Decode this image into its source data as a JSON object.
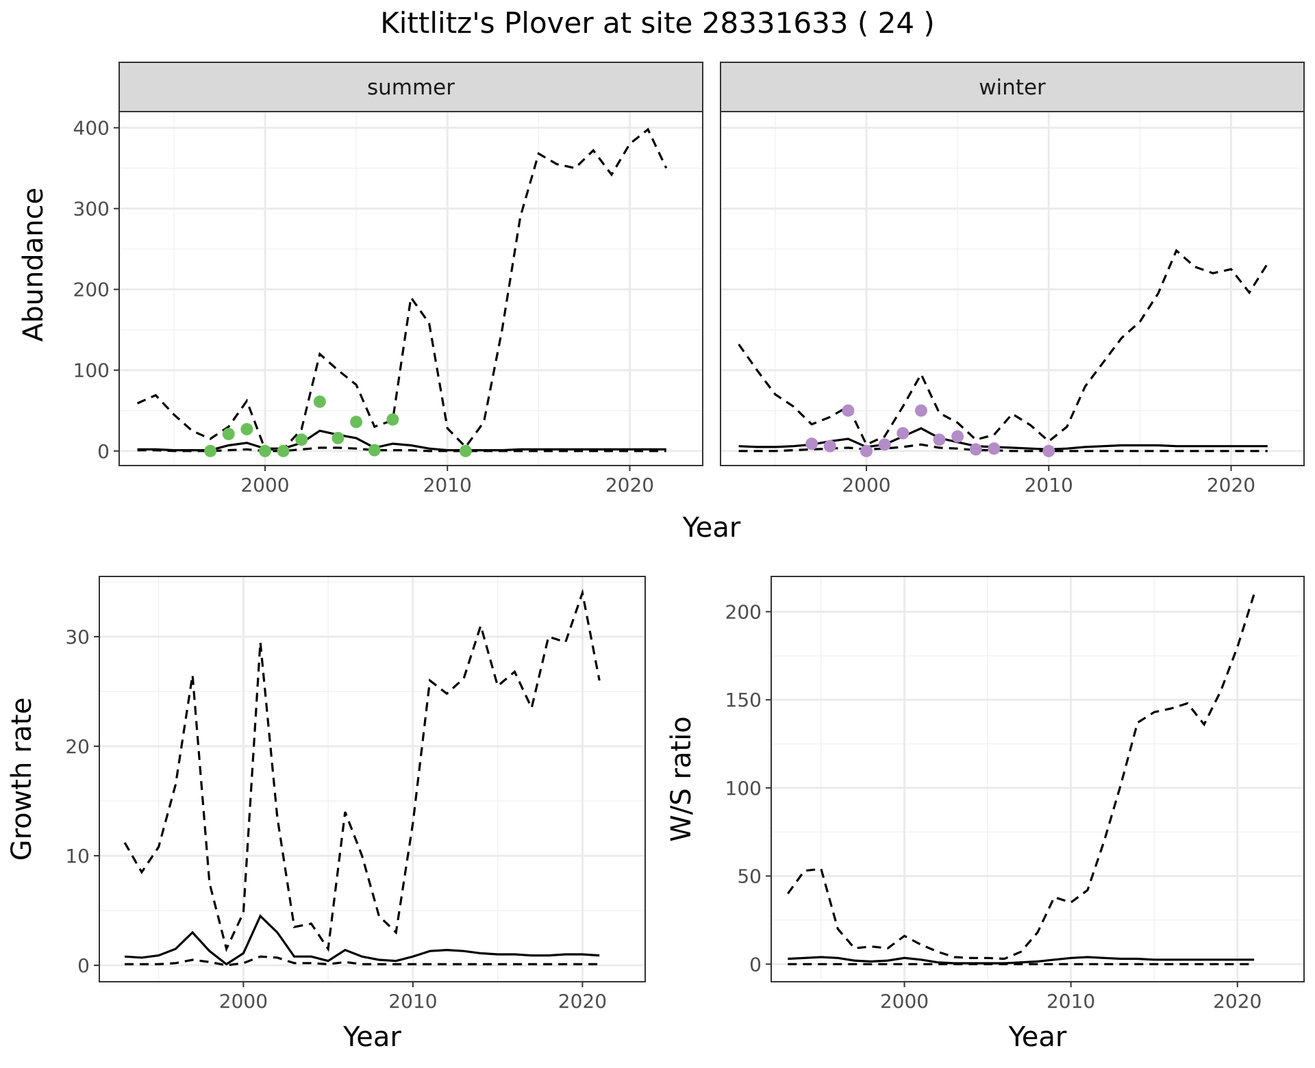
{
  "title": "Kittlitz's Plover at site 28331633 ( 24 )",
  "colors": {
    "summer_points": "#6abf5a",
    "winter_points": "#b48cc8"
  },
  "chart_data": [
    {
      "type": "line",
      "facet": "summer",
      "xlabel": "Year",
      "ylabel": "Abundance",
      "xlim": [
        1992,
        2024
      ],
      "ylim": [
        -18,
        420
      ],
      "xticks": [
        2000,
        2010,
        2020
      ],
      "yticks": [
        0,
        100,
        200,
        300,
        400
      ],
      "grid": true,
      "x": [
        1993,
        1994,
        1995,
        1996,
        1997,
        1998,
        1999,
        2000,
        2001,
        2002,
        2003,
        2004,
        2005,
        2006,
        2007,
        2008,
        2009,
        2010,
        2011,
        2012,
        2013,
        2014,
        2015,
        2016,
        2017,
        2018,
        2019,
        2020,
        2021,
        2022
      ],
      "series": [
        {
          "style": "solid",
          "values": [
            2,
            2,
            1,
            1,
            1,
            7,
            10,
            3,
            3,
            10,
            25,
            20,
            16,
            4,
            9,
            7,
            3,
            1,
            1,
            1,
            1,
            2,
            2,
            2,
            2,
            2,
            2,
            2,
            2,
            2
          ]
        },
        {
          "style": "dashed",
          "values": [
            59,
            69,
            45,
            25,
            15,
            30,
            62,
            2,
            2,
            27,
            120,
            100,
            82,
            30,
            38,
            190,
            158,
            28,
            5,
            36,
            150,
            290,
            368,
            355,
            350,
            372,
            342,
            380,
            398,
            350
          ]
        },
        {
          "style": "dashed",
          "values": [
            1,
            1,
            0,
            0,
            0,
            1,
            2,
            0,
            0,
            2,
            4,
            4,
            3,
            1,
            1,
            1,
            0,
            0,
            0,
            0,
            0,
            0,
            0,
            0,
            0,
            0,
            0,
            0,
            0,
            0
          ]
        }
      ],
      "points": {
        "x": [
          1997,
          1998,
          1999,
          2000,
          2001,
          2002,
          2003,
          2004,
          2005,
          2006,
          2007,
          2011
        ],
        "y": [
          0,
          21,
          27,
          0,
          0,
          14,
          61,
          16,
          36,
          1,
          39,
          0
        ]
      }
    },
    {
      "type": "line",
      "facet": "winter",
      "xlabel": "Year",
      "ylabel": "Abundance",
      "xlim": [
        1992,
        2024
      ],
      "ylim": [
        -18,
        420
      ],
      "xticks": [
        2000,
        2010,
        2020
      ],
      "yticks": [
        0,
        100,
        200,
        300,
        400
      ],
      "grid": true,
      "x": [
        1993,
        1994,
        1995,
        1996,
        1997,
        1998,
        1999,
        2000,
        2001,
        2002,
        2003,
        2004,
        2005,
        2006,
        2007,
        2008,
        2009,
        2010,
        2011,
        2012,
        2013,
        2014,
        2015,
        2016,
        2017,
        2018,
        2019,
        2020,
        2021,
        2022
      ],
      "series": [
        {
          "style": "solid",
          "values": [
            6,
            5,
            5,
            6,
            8,
            12,
            15,
            5,
            8,
            18,
            28,
            16,
            11,
            6,
            5,
            4,
            3,
            2,
            3,
            5,
            6,
            7,
            7,
            7,
            6,
            6,
            6,
            6,
            6,
            6
          ]
        },
        {
          "style": "dashed",
          "values": [
            132,
            100,
            70,
            55,
            33,
            42,
            55,
            8,
            18,
            55,
            95,
            47,
            35,
            14,
            20,
            46,
            32,
            12,
            30,
            80,
            110,
            140,
            160,
            195,
            248,
            228,
            220,
            225,
            196,
            232
          ]
        },
        {
          "style": "dashed",
          "values": [
            0,
            0,
            0,
            1,
            2,
            3,
            4,
            2,
            3,
            5,
            8,
            4,
            3,
            1,
            1,
            0,
            0,
            0,
            0,
            0,
            0,
            0,
            0,
            0,
            0,
            0,
            0,
            0,
            0,
            0
          ]
        }
      ],
      "points": {
        "x": [
          1997,
          1998,
          1999,
          2000,
          2001,
          2002,
          2003,
          2004,
          2005,
          2006,
          2007,
          2010
        ],
        "y": [
          9,
          6,
          50,
          0,
          8,
          22,
          50,
          14,
          18,
          2,
          3,
          0
        ]
      }
    },
    {
      "type": "line",
      "xlabel": "Year",
      "ylabel": "Growth rate",
      "xlim": [
        1991.5,
        2023.7
      ],
      "ylim": [
        -1.5,
        35.5
      ],
      "xticks": [
        2000,
        2010,
        2020
      ],
      "yticks": [
        0,
        10,
        20,
        30
      ],
      "grid": true,
      "x": [
        1993,
        1994,
        1995,
        1996,
        1997,
        1998,
        1999,
        2000,
        2001,
        2002,
        2003,
        2004,
        2005,
        2006,
        2007,
        2008,
        2009,
        2010,
        2011,
        2012,
        2013,
        2014,
        2015,
        2016,
        2017,
        2018,
        2019,
        2020,
        2021
      ],
      "series": [
        {
          "style": "solid",
          "values": [
            0.8,
            0.7,
            0.9,
            1.5,
            3.0,
            1.3,
            0.1,
            1.1,
            4.5,
            3.0,
            0.8,
            0.8,
            0.4,
            1.4,
            0.8,
            0.5,
            0.4,
            0.8,
            1.3,
            1.4,
            1.3,
            1.1,
            1.0,
            1.0,
            0.9,
            0.9,
            1.0,
            1.0,
            0.9
          ]
        },
        {
          "style": "dashed",
          "values": [
            11.2,
            8.5,
            10.8,
            16.5,
            26.5,
            7.5,
            1.5,
            4.8,
            29.5,
            13.5,
            3.5,
            3.8,
            1.5,
            14.0,
            10.0,
            4.5,
            3.0,
            13.0,
            26.0,
            24.8,
            26.2,
            31.0,
            25.5,
            26.8,
            23.5,
            30.0,
            29.5,
            34.0,
            26.0
          ]
        },
        {
          "style": "dashed",
          "values": [
            0.1,
            0.1,
            0.1,
            0.2,
            0.5,
            0.3,
            0.0,
            0.2,
            0.8,
            0.7,
            0.2,
            0.2,
            0.1,
            0.3,
            0.1,
            0.1,
            0.1,
            0.1,
            0.1,
            0.1,
            0.1,
            0.1,
            0.1,
            0.1,
            0.1,
            0.1,
            0.1,
            0.1,
            0.1
          ]
        }
      ]
    },
    {
      "type": "line",
      "xlabel": "Year",
      "ylabel": "W/S ratio",
      "xlim": [
        1992,
        2024
      ],
      "ylim": [
        -10,
        220
      ],
      "xticks": [
        2000,
        2010,
        2020
      ],
      "yticks": [
        0,
        50,
        100,
        150,
        200
      ],
      "grid": true,
      "x": [
        1993,
        1994,
        1995,
        1996,
        1997,
        1998,
        1999,
        2000,
        2001,
        2002,
        2003,
        2004,
        2005,
        2006,
        2007,
        2008,
        2009,
        2010,
        2011,
        2012,
        2013,
        2014,
        2015,
        2016,
        2017,
        2018,
        2019,
        2020,
        2021
      ],
      "series": [
        {
          "style": "solid",
          "values": [
            3,
            3.5,
            4,
            3.5,
            2,
            1.5,
            2,
            3.5,
            2.5,
            1,
            0.5,
            0.5,
            0.5,
            0.5,
            1,
            1.5,
            2.5,
            3.5,
            4,
            3.5,
            3,
            3,
            2.5,
            2.5,
            2.5,
            2.5,
            2.5,
            2.5,
            2.5
          ]
        },
        {
          "style": "dashed",
          "values": [
            40,
            53,
            54,
            20,
            9,
            10,
            9,
            16,
            11,
            7,
            4,
            3.5,
            3.5,
            3,
            7,
            18,
            38,
            35,
            42,
            70,
            102,
            137,
            143,
            145,
            148,
            136,
            155,
            180,
            210
          ]
        },
        {
          "style": "dashed",
          "values": [
            0,
            0,
            0,
            0,
            0,
            0,
            0,
            0,
            0,
            0,
            0,
            0,
            0,
            0,
            0,
            0,
            0,
            0,
            0,
            0,
            0,
            0,
            0,
            0,
            0,
            0,
            0,
            0,
            0
          ]
        }
      ]
    }
  ]
}
